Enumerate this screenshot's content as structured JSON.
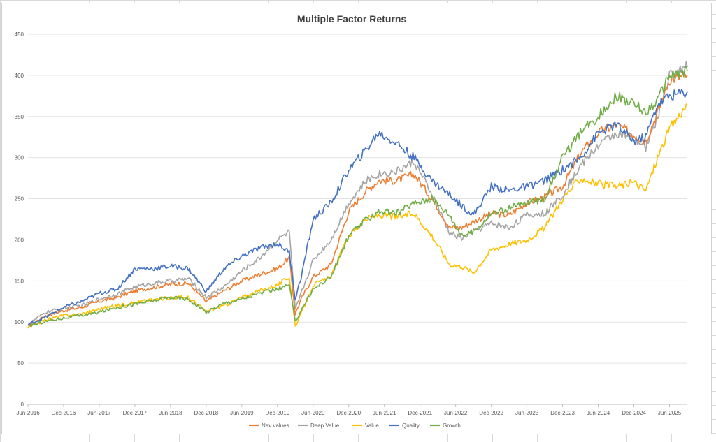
{
  "chart_data": {
    "type": "line",
    "title": "Multiple Factor Returns",
    "xlabel": "",
    "ylabel": "",
    "ylim": [
      0,
      450
    ],
    "y_ticks": [
      "0",
      "50",
      "100",
      "150",
      "200",
      "250",
      "300",
      "350",
      "400",
      "450"
    ],
    "x_tick_labels": [
      "Jun-2016",
      "Dec-2016",
      "Jun-2017",
      "Dec-2017",
      "Jun-2018",
      "Dec-2018",
      "Jun-2019",
      "Dec-2019",
      "Jun-2020",
      "Dec-2020",
      "Jun-2021",
      "Dec-2021",
      "Jun-2022",
      "Dec-2022",
      "Jun-2023",
      "Dec-2023",
      "Jun-2024",
      "Dec-2024",
      "Jun-2025"
    ],
    "x_range": [
      "2016-06",
      "2025-09"
    ],
    "grid": "horizontal",
    "legend_position": "bottom",
    "x": [
      "2016-06",
      "2016-09",
      "2016-12",
      "2017-03",
      "2017-06",
      "2017-09",
      "2017-12",
      "2018-03",
      "2018-06",
      "2018-09",
      "2018-12",
      "2019-03",
      "2019-06",
      "2019-09",
      "2019-12",
      "2020-02",
      "2020-03",
      "2020-04",
      "2020-06",
      "2020-09",
      "2020-12",
      "2021-03",
      "2021-05",
      "2021-08",
      "2021-11",
      "2022-02",
      "2022-05",
      "2022-07",
      "2022-09",
      "2022-12",
      "2023-03",
      "2023-06",
      "2023-09",
      "2023-12",
      "2024-03",
      "2024-06",
      "2024-09",
      "2024-12",
      "2025-02",
      "2025-04",
      "2025-06",
      "2025-09"
    ],
    "series": [
      {
        "name": "Nav values",
        "color": "#ED7D31",
        "values": [
          95,
          108,
          114,
          118,
          125,
          130,
          138,
          142,
          146,
          147,
          125,
          138,
          150,
          158,
          165,
          178,
          110,
          128,
          155,
          170,
          235,
          260,
          272,
          272,
          280,
          250,
          215,
          215,
          222,
          232,
          230,
          245,
          252,
          265,
          305,
          330,
          340,
          328,
          320,
          355,
          395,
          400
        ]
      },
      {
        "name": "Deep Value",
        "color": "#A5A5A5",
        "values": [
          97,
          112,
          117,
          120,
          128,
          134,
          143,
          147,
          150,
          153,
          130,
          143,
          162,
          178,
          200,
          210,
          115,
          135,
          175,
          200,
          245,
          272,
          280,
          283,
          295,
          255,
          208,
          202,
          210,
          220,
          215,
          230,
          232,
          255,
          290,
          315,
          330,
          322,
          312,
          350,
          400,
          410
        ]
      },
      {
        "name": "Value",
        "color": "#FFC000",
        "values": [
          93,
          103,
          108,
          110,
          116,
          120,
          124,
          127,
          130,
          130,
          113,
          120,
          130,
          138,
          145,
          155,
          95,
          110,
          145,
          155,
          205,
          225,
          230,
          228,
          232,
          205,
          170,
          168,
          160,
          188,
          195,
          200,
          215,
          250,
          275,
          268,
          265,
          270,
          260,
          300,
          335,
          365
        ]
      },
      {
        "name": "Quality",
        "color": "#4472C4",
        "values": [
          97,
          106,
          118,
          125,
          135,
          140,
          165,
          165,
          168,
          165,
          137,
          165,
          180,
          190,
          195,
          185,
          128,
          155,
          225,
          245,
          285,
          310,
          330,
          318,
          300,
          272,
          255,
          242,
          230,
          265,
          260,
          265,
          272,
          285,
          300,
          330,
          340,
          320,
          325,
          365,
          375,
          380
        ]
      },
      {
        "name": "Growth",
        "color": "#70AD47",
        "values": [
          95,
          101,
          105,
          108,
          112,
          118,
          122,
          126,
          130,
          128,
          112,
          123,
          128,
          135,
          140,
          145,
          100,
          115,
          140,
          155,
          205,
          225,
          235,
          232,
          245,
          250,
          230,
          205,
          210,
          232,
          238,
          245,
          250,
          300,
          330,
          350,
          375,
          365,
          355,
          370,
          400,
          405
        ]
      }
    ]
  }
}
